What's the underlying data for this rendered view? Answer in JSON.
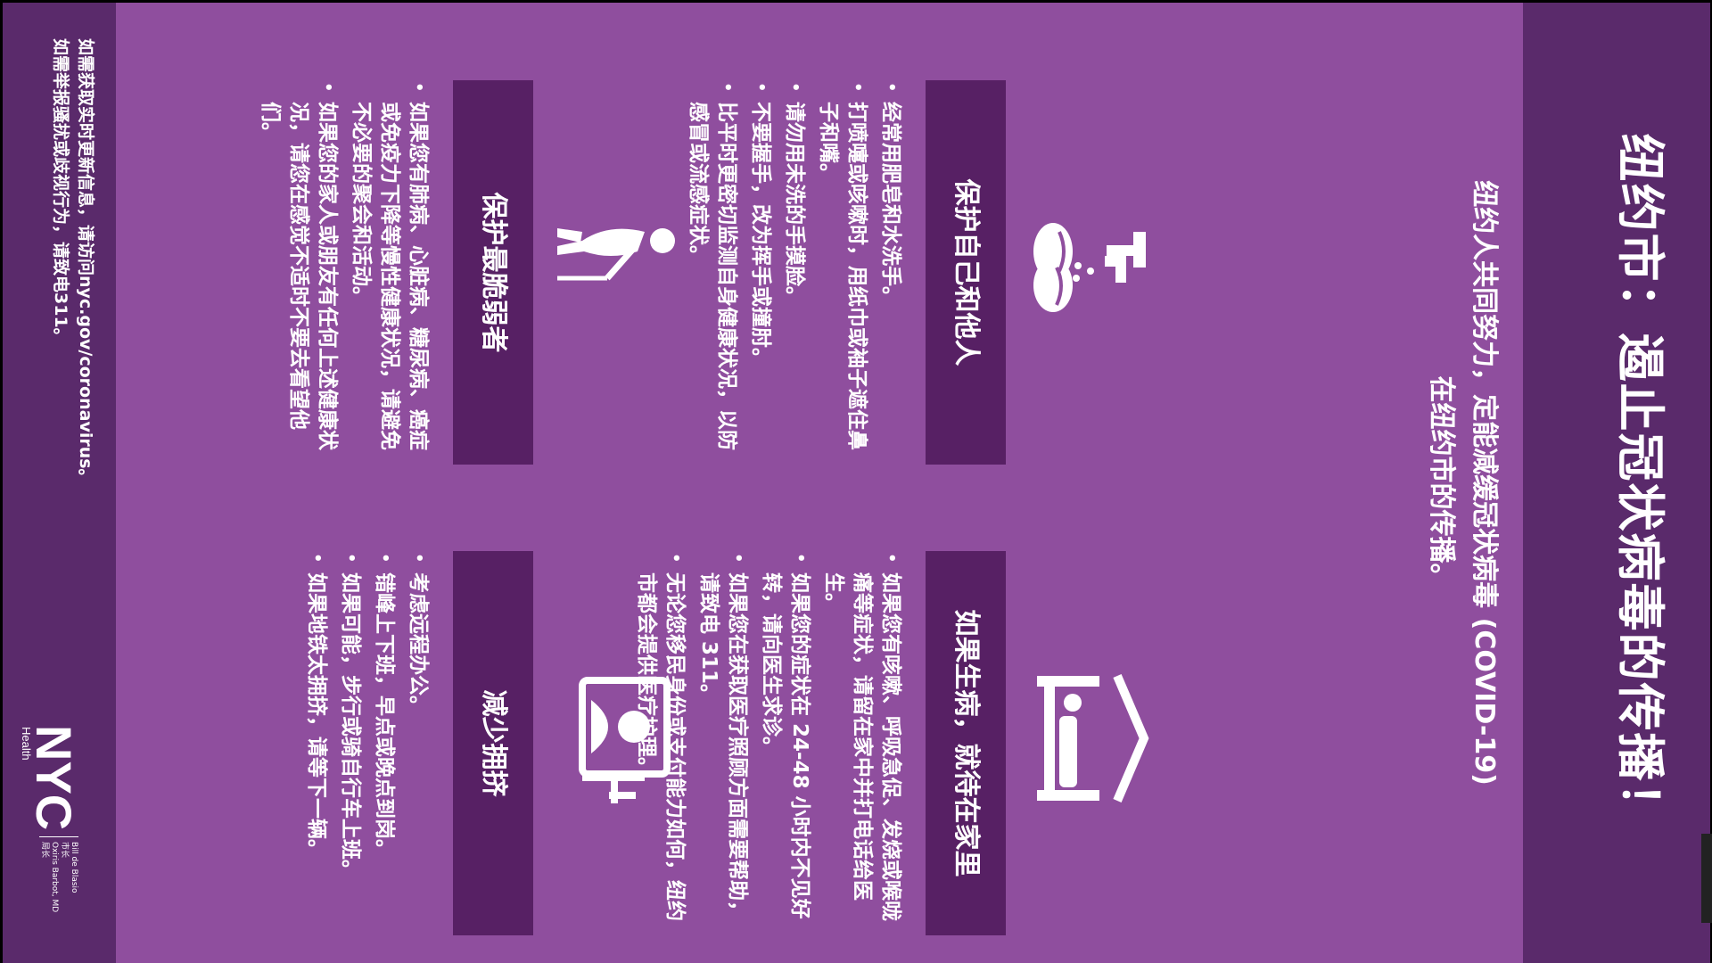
{
  "title": "纽约市：遏止冠状病毒的传播！",
  "subtitle_lines": [
    "纽约人共同努力，定能减缓冠状病毒 (COVID-19)",
    "在纽约市的传播。"
  ],
  "cards": [
    {
      "heading": "保护自己和他人",
      "icon": "hand-washing-icon",
      "bullets": [
        "经常用肥皂和水洗手。",
        "打喷嚏或咳嗽时，用纸巾或袖子遮住鼻子和嘴。",
        "请勿用未洗的手摸脸。",
        "不要握手，改为挥手或撞肘。",
        "比平时更密切监测自身健康状况，以防感冒或流感症状。"
      ]
    },
    {
      "heading": "如果生病，就待在家里",
      "icon": "bed-icon",
      "bullets": [
        "如果您有咳嗽、呼吸急促、发烧或喉咙痛等症状，请留在家中并打电话给医生。",
        "如果您的症状在 24-48 小时内不见好转，请向医生求诊。",
        "如果您在获取医疗照顾方面需要帮助，请致电 311。",
        "无论您移民身份或支付能力如何，纽约市都会提供医疗护理。"
      ]
    },
    {
      "heading": "保护最脆弱者",
      "icon": "elderly-person-icon",
      "bullets": [
        "如果您有肺病、心脏病、糖尿病、癌症或免疫力下降等慢性健康状况，请避免不必要的聚会和活动。",
        "如果您的家人或朋友有任何上述健康状况，请您在感觉不适时不要去看望他们。"
      ]
    },
    {
      "heading": "减少拥挤",
      "icon": "remote-work-icon",
      "bullets": [
        "考虑远程办公。",
        "错峰上下班，早点或晚点到岗。",
        "如果可能，步行或骑自行车上班。",
        "如果地铁太拥挤，请等下一辆。"
      ]
    }
  ],
  "footer": {
    "line1": "如需获取实时更新信息，请访问nyc.gov/coronavirus。",
    "line2": "如需举报骚扰或歧视行为，请致电311。"
  },
  "logo": {
    "text": "NYC",
    "sub": "Health"
  },
  "officials": [
    {
      "name": "Bill de Blasio",
      "role": "市长"
    },
    {
      "name": "Oxiris Barbot, MD",
      "role": "局长"
    }
  ],
  "colors": {
    "background": "#8f4e9e",
    "band": "#5a2a6b",
    "header": "#572064",
    "text": "#ffffff"
  }
}
